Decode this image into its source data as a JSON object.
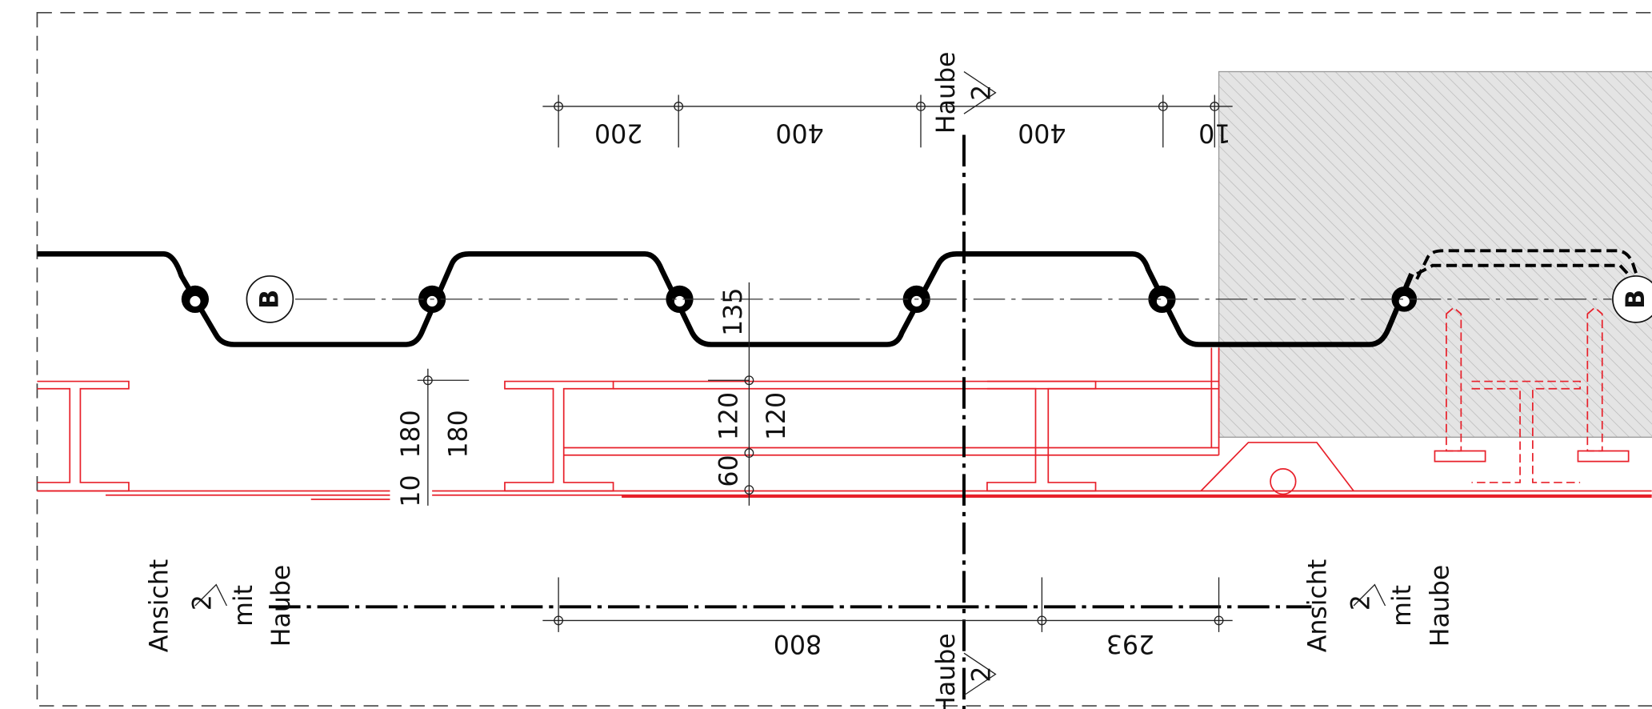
{
  "top_dimensions": [
    "200",
    "400",
    "400",
    "10"
  ],
  "section_markers": [
    {
      "label": "Haube",
      "number": "2"
    },
    {
      "label": "Haube",
      "number": "2"
    }
  ],
  "detail_markers": [
    "B",
    "B"
  ],
  "vertical_dimensions": [
    "135",
    "180",
    "180",
    "120",
    "120",
    "60",
    "10"
  ],
  "view_markers": [
    {
      "label": "Ansicht",
      "number": "2",
      "note": "mit",
      "extra": "Haube"
    },
    {
      "label": "Ansicht",
      "number": "2",
      "note": "mit",
      "extra": "Haube"
    }
  ],
  "bottom_dimensions": [
    "800",
    "293"
  ]
}
